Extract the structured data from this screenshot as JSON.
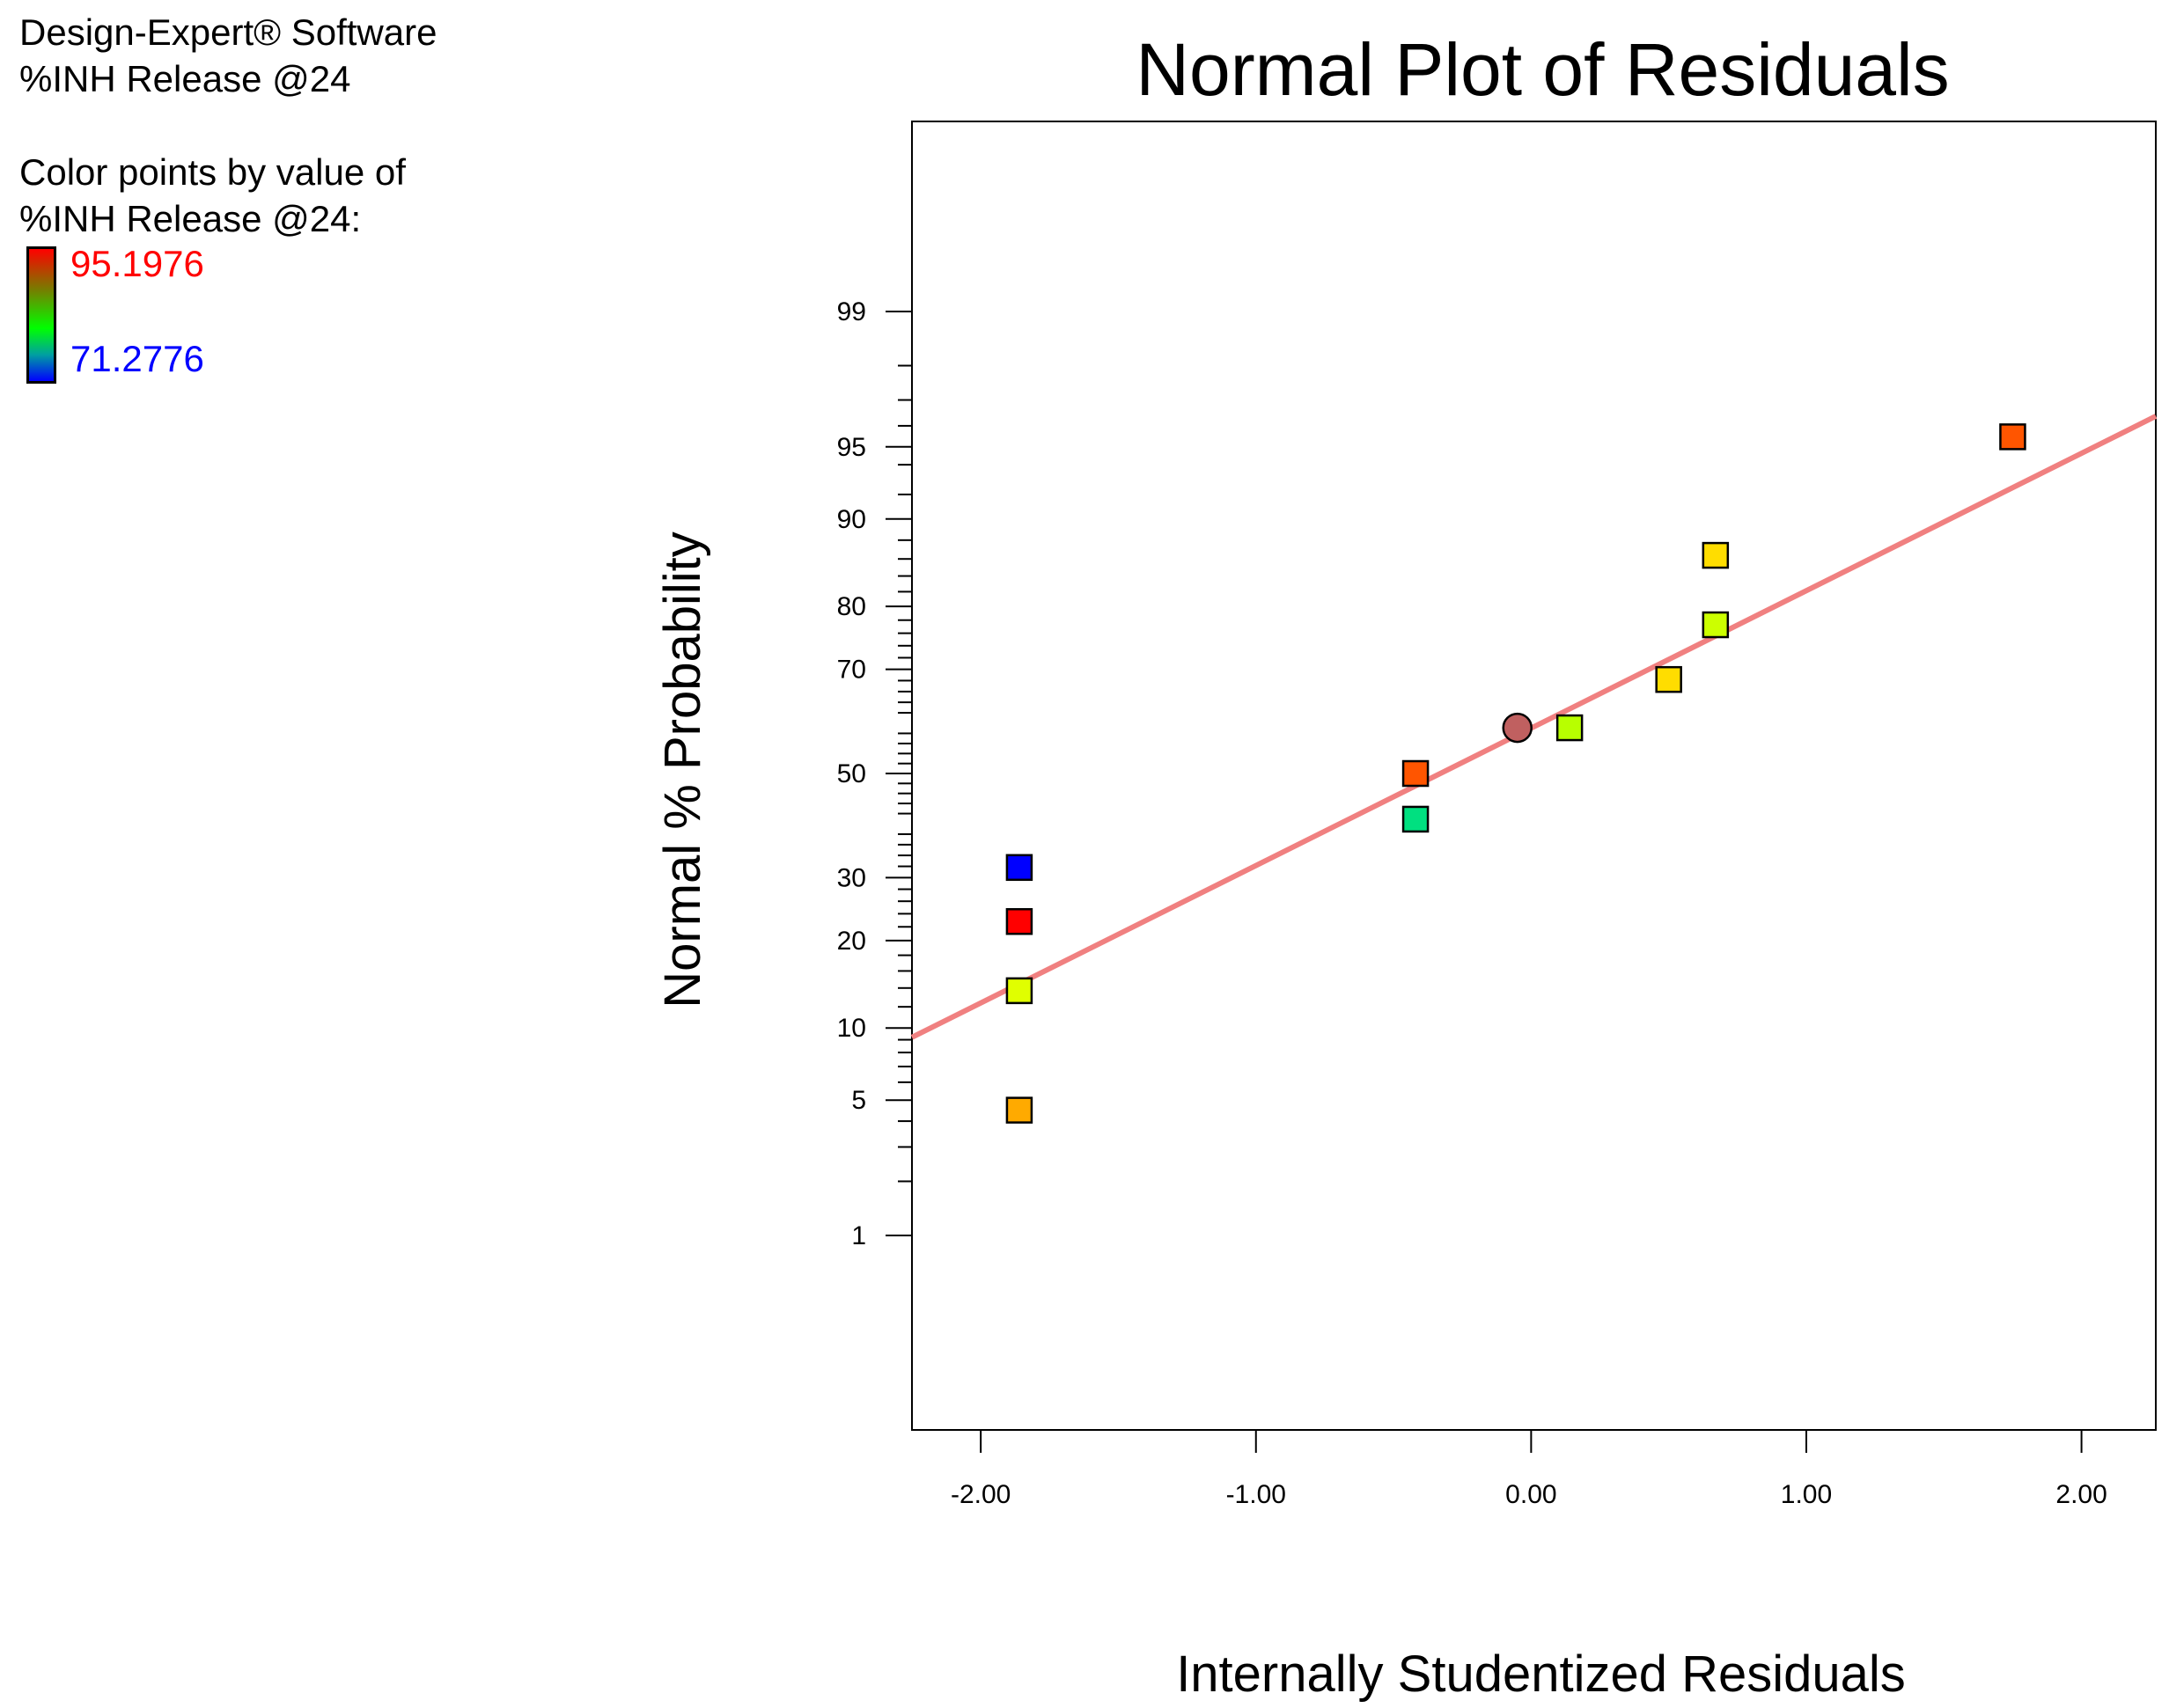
{
  "info": {
    "software": "Design-Expert® Software",
    "response": "%INH Release @24",
    "color_caption_1": "Color points by value of",
    "color_caption_2": "%INH Release @24:",
    "legend_high": "95.1976",
    "legend_low": "71.2776",
    "legend_high_color": "#ff0000",
    "legend_low_color": "#0000ff"
  },
  "chart_data": {
    "type": "scatter",
    "title": "Normal Plot of Residuals",
    "xlabel": "Internally Studentized Residuals",
    "ylabel": "Normal % Probability",
    "xlim": [
      -2.25,
      2.27
    ],
    "x_ticks": [
      "-2.00",
      "-1.00",
      "0.00",
      "1.00",
      "2.00"
    ],
    "x_tick_values": [
      -2,
      -1,
      0,
      1,
      2
    ],
    "y_scale": "normal-probability",
    "y_labeled_ticks": [
      1,
      5,
      10,
      20,
      30,
      50,
      70,
      80,
      90,
      95,
      99
    ],
    "reference_line": {
      "color": "#f08080",
      "x": [
        -2.25,
        2.27
      ],
      "y": [
        9.2,
        96.4
      ]
    },
    "points": [
      {
        "x": -1.86,
        "y": 4.5,
        "marker": "square",
        "color": "#ffaa00"
      },
      {
        "x": -1.86,
        "y": 13.7,
        "marker": "square",
        "color": "#e0ff00"
      },
      {
        "x": -1.86,
        "y": 22.8,
        "marker": "square",
        "color": "#ff0000"
      },
      {
        "x": -1.86,
        "y": 31.8,
        "marker": "square",
        "color": "#0000ff"
      },
      {
        "x": -0.42,
        "y": 40.9,
        "marker": "square",
        "color": "#00e080"
      },
      {
        "x": -0.42,
        "y": 50.0,
        "marker": "square",
        "color": "#ff5500"
      },
      {
        "x": -0.05,
        "y": 59.1,
        "marker": "circle",
        "color": "#c06060"
      },
      {
        "x": 0.14,
        "y": 59.1,
        "marker": "square",
        "color": "#b8ff00"
      },
      {
        "x": 0.5,
        "y": 68.2,
        "marker": "square",
        "color": "#ffdd00"
      },
      {
        "x": 0.67,
        "y": 77.3,
        "marker": "square",
        "color": "#ccff00"
      },
      {
        "x": 0.67,
        "y": 86.4,
        "marker": "square",
        "color": "#ffdd00"
      },
      {
        "x": 1.75,
        "y": 95.5,
        "marker": "square",
        "color": "#ff5500"
      }
    ]
  }
}
